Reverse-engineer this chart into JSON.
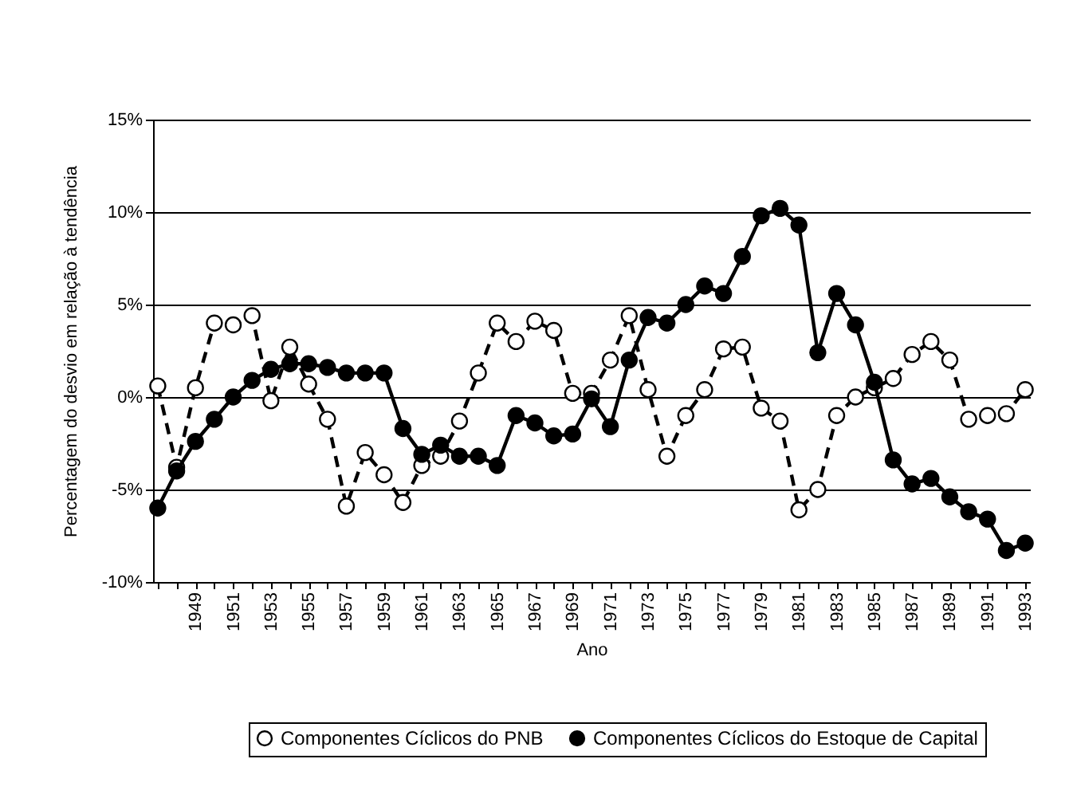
{
  "chart_data": {
    "type": "line",
    "xlabel": "Ano",
    "ylabel": "Percentagem do desvio em relação à tendência",
    "categories": [
      null,
      null,
      "1949",
      null,
      "1951",
      null,
      "1953",
      null,
      "1955",
      null,
      "1957",
      null,
      "1959",
      null,
      "1961",
      null,
      "1963",
      null,
      "1965",
      null,
      "1967",
      null,
      "1969",
      null,
      "1971",
      null,
      "1973",
      null,
      "1975",
      null,
      "1977",
      null,
      "1979",
      null,
      "1981",
      null,
      "1983",
      null,
      "1985",
      null,
      "1987",
      null,
      "1989",
      null,
      "1991",
      null,
      "1993"
    ],
    "series": [
      {
        "name": "Componentes Cíclicos do PNB",
        "color": "#000000",
        "line_style": "dashed",
        "values": [
          0.6,
          -3.8,
          0.5,
          4.0,
          3.9,
          4.4,
          -0.2,
          2.7,
          0.7,
          -1.2,
          -5.9,
          -3.0,
          -4.2,
          -5.7,
          -3.7,
          -3.2,
          -1.3,
          1.3,
          4.0,
          3.0,
          4.1,
          3.6,
          0.2,
          0.2,
          2.0,
          4.4,
          0.4,
          -3.2,
          -1.0,
          0.4,
          2.6,
          2.7,
          -0.6,
          -1.3,
          -6.1,
          -5.0,
          -1.0,
          0.0,
          0.5,
          1.0,
          2.3,
          3.0,
          2.0,
          -1.2,
          -1.0,
          -0.9,
          0.4
        ]
      },
      {
        "name": "Componentes Cíclicos do Estoque de Capital",
        "color": "#000000",
        "line_style": "solid",
        "values": [
          -6.0,
          -4.0,
          -2.4,
          -1.2,
          0.0,
          0.9,
          1.5,
          1.8,
          1.8,
          1.6,
          1.3,
          1.3,
          1.3,
          -1.7,
          -3.1,
          -2.6,
          -3.2,
          -3.2,
          -3.7,
          -1.0,
          -1.4,
          -2.1,
          -2.0,
          -0.1,
          -1.6,
          2.0,
          4.3,
          4.0,
          5.0,
          6.0,
          5.6,
          7.6,
          9.8,
          10.2,
          9.3,
          2.4,
          5.6,
          3.9,
          0.8,
          -3.4,
          -4.7,
          -4.4,
          -5.4,
          -6.2,
          -6.6,
          -8.3,
          -7.9
        ]
      }
    ],
    "ylim": [
      -10,
      15
    ],
    "yticks": [
      {
        "value": -10,
        "label": "-10%"
      },
      {
        "value": -5,
        "label": "-5%"
      },
      {
        "value": 0,
        "label": "0%"
      },
      {
        "value": 5,
        "label": "5%"
      },
      {
        "value": 10,
        "label": "10%"
      },
      {
        "value": 15,
        "label": "15%"
      }
    ],
    "grid": "y",
    "legend": "bottom",
    "marker": "circle"
  }
}
